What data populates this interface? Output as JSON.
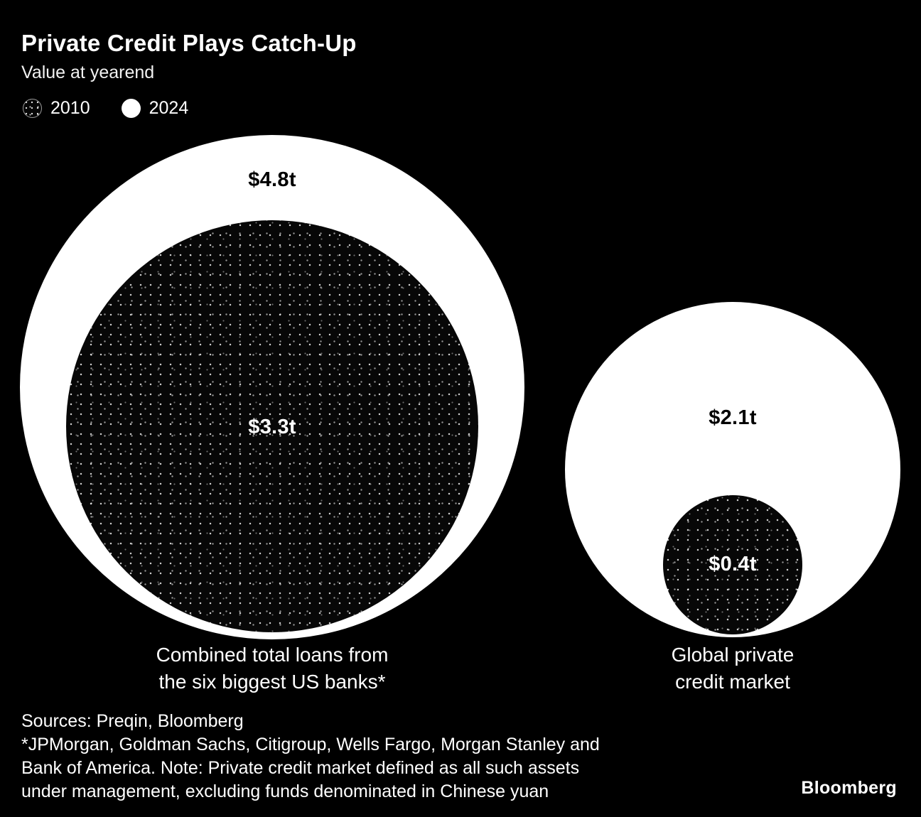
{
  "header": {
    "title": "Private Credit Plays Catch-Up",
    "subtitle": "Value at yearend"
  },
  "legend": [
    {
      "label": "2010",
      "swatch": "dotted-black"
    },
    {
      "label": "2024",
      "swatch": "solid-white"
    }
  ],
  "chart_data": {
    "type": "proportional-area-circles",
    "title": "Private Credit Plays Catch-Up",
    "subtitle": "Value at yearend",
    "unit": "trillions of US dollars",
    "legend_position": "top-left",
    "background_color": "#000000",
    "series_styles": {
      "2010": "black circle with white stipple dots",
      "2024": "solid white circle"
    },
    "groups": [
      {
        "label": "Combined total loans from the six biggest US banks*",
        "label_lines": [
          "Combined total loans from",
          "the six biggest US banks*"
        ],
        "series": [
          {
            "name": "2024",
            "value": 4.8,
            "display": "$4.8t"
          },
          {
            "name": "2010",
            "value": 3.3,
            "display": "$3.3t"
          }
        ]
      },
      {
        "label": "Global private credit market",
        "label_lines": [
          "Global private",
          "credit market"
        ],
        "series": [
          {
            "name": "2024",
            "value": 2.1,
            "display": "$2.1t"
          },
          {
            "name": "2010",
            "value": 0.4,
            "display": "$0.4t"
          }
        ]
      }
    ]
  },
  "colors": {
    "background": "#000000",
    "circle_2024": "#ffffff",
    "circle_2010_fill": "#070707",
    "stipple_dots": "#ffffff",
    "text_primary": "#ffffff",
    "text_on_white": "#000000"
  },
  "footer": {
    "sources": "Sources: Preqin, Bloomberg",
    "note_lines": [
      "*JPMorgan, Goldman Sachs, Citigroup, Wells Fargo, Morgan Stanley and",
      "Bank of America. Note: Private credit market defined as all such assets",
      "under management, excluding funds denominated in Chinese yuan"
    ],
    "brand": "Bloomberg"
  }
}
